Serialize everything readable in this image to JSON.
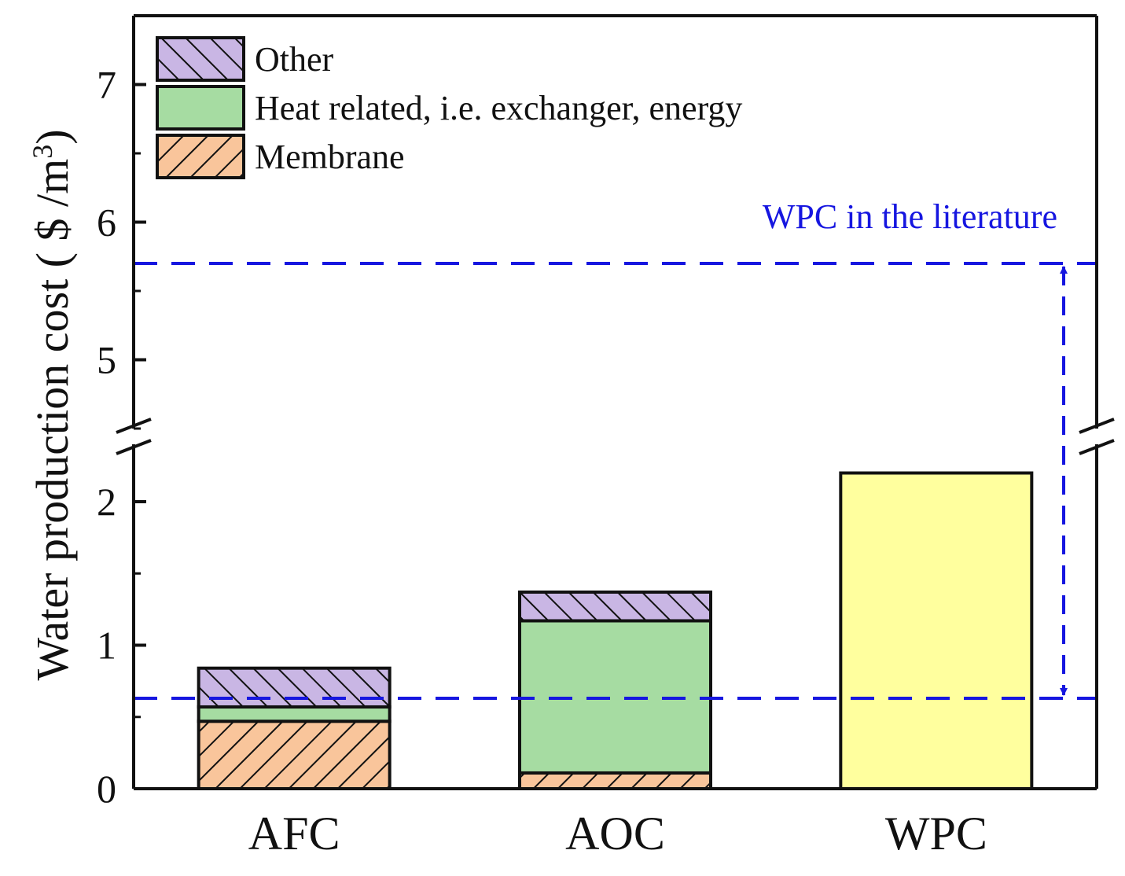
{
  "chart_data": {
    "type": "bar",
    "stacked": true,
    "broken_y_axis": true,
    "ylabel_main": "Water production cost ( $ /m",
    "ylabel_sup": "3",
    "ylabel_close": ")",
    "ylim_lower": [
      0,
      2.4
    ],
    "ylim_upper": [
      4.5,
      7.5
    ],
    "yticks": [
      0,
      1,
      2,
      5,
      6,
      7
    ],
    "categories": [
      "AFC",
      "AOC",
      "WPC"
    ],
    "series": [
      {
        "name": "Membrane",
        "values": [
          0.47,
          0.11,
          null
        ],
        "color": "#F9C59B",
        "pattern": "hatch-forward"
      },
      {
        "name": "Heat related, i.e. exchanger, energy",
        "values": [
          0.1,
          1.06,
          null
        ],
        "color": "#A6DCA2",
        "pattern": "solid"
      },
      {
        "name": "Other",
        "values": [
          0.27,
          0.2,
          null
        ],
        "color": "#C9B6E4",
        "pattern": "hatch-back"
      }
    ],
    "single_bars": [
      {
        "category": "WPC",
        "value": 2.2,
        "color": "#FFFF9E"
      }
    ],
    "legend_order": [
      "Other",
      "Heat related, i.e. exchanger, energy",
      "Membrane"
    ],
    "legend_position": "top-left",
    "reference": {
      "label": "WPC in the literature",
      "low": 0.63,
      "high": 5.7,
      "color": "#1616E0"
    }
  }
}
